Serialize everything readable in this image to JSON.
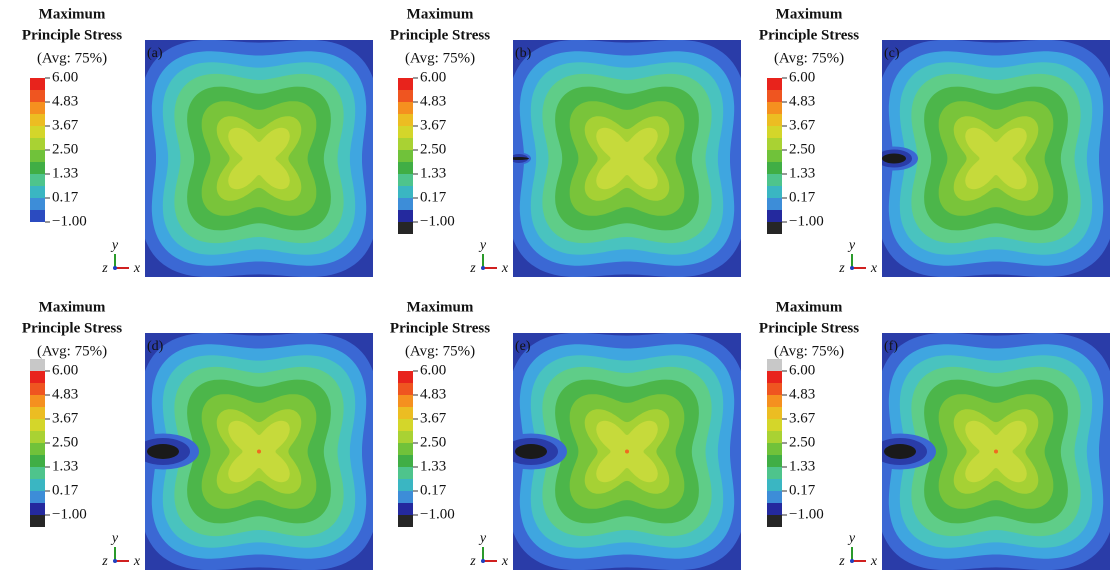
{
  "panels": [
    {
      "label": "(a)",
      "legend": {
        "title": [
          "Maximum",
          "Principle Stress"
        ],
        "subtitle": "(Avg: 75%)",
        "ticks": [
          "6.00",
          "4.83",
          "3.67",
          "2.50",
          "1.33",
          "0.17",
          "−1.00"
        ]
      },
      "axes": {
        "y": "y",
        "z": "z",
        "x": "x"
      }
    },
    {
      "label": "(b)",
      "legend": {
        "title": [
          "Maximum",
          "Principle Stress"
        ],
        "subtitle": "(Avg: 75%)",
        "ticks": [
          "6.00",
          "4.83",
          "3.67",
          "2.50",
          "1.33",
          "0.17",
          "−1.00"
        ]
      },
      "axes": {
        "y": "y",
        "z": "z",
        "x": "x"
      }
    },
    {
      "label": "(c)",
      "legend": {
        "title": [
          "Maximum",
          "Principle Stress"
        ],
        "subtitle": "(Avg: 75%)",
        "ticks": [
          "6.00",
          "4.83",
          "3.67",
          "2.50",
          "1.33",
          "0.17",
          "−1.00"
        ]
      },
      "axes": {
        "y": "y",
        "z": "z",
        "x": "x"
      }
    },
    {
      "label": "(d)",
      "legend": {
        "title": [
          "Maximum",
          "Principle Stress"
        ],
        "subtitle": "(Avg: 75%)",
        "ticks": [
          "6.00",
          "4.83",
          "3.67",
          "2.50",
          "1.33",
          "0.17",
          "−1.00"
        ]
      },
      "axes": {
        "y": "y",
        "z": "z",
        "x": "x"
      }
    },
    {
      "label": "(e)",
      "legend": {
        "title": [
          "Maximum",
          "Principle Stress"
        ],
        "subtitle": "(Avg: 75%)",
        "ticks": [
          "6.00",
          "4.83",
          "3.67",
          "2.50",
          "1.33",
          "0.17",
          "−1.00"
        ]
      },
      "axes": {
        "y": "y",
        "z": "z",
        "x": "x"
      }
    },
    {
      "label": "(f)",
      "legend": {
        "title": [
          "Maximum",
          "Principle Stress"
        ],
        "subtitle": "(Avg: 75%)",
        "ticks": [
          "6.00",
          "4.83",
          "3.67",
          "2.50",
          "1.33",
          "0.17",
          "−1.00"
        ]
      },
      "axes": {
        "y": "y",
        "z": "z",
        "x": "x"
      }
    }
  ]
}
